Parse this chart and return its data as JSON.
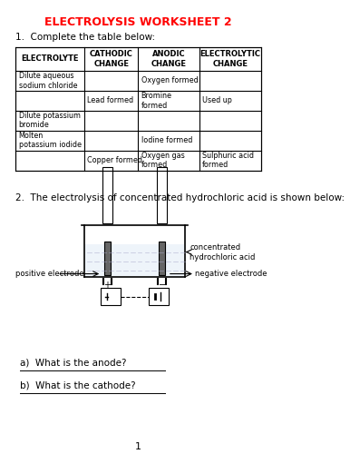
{
  "title": "ELECTROLYSIS WORKSHEET 2",
  "title_color": "#FF0000",
  "bg_color": "#FFFFFF",
  "q1_text": "1.  Complete the table below:",
  "q2_text": "2.  The electrolysis of concentrated hydrochloric acid is shown below:",
  "table_headers": [
    "ELECTROLYTE",
    "CATHODIC\nCHANGE",
    "ANODIC\nCHANGE",
    "ELECTROLYTIC\nCHANGE"
  ],
  "table_rows": [
    [
      "Dilute aqueous\nsodium chloride",
      "",
      "Oxygen formed",
      ""
    ],
    [
      "",
      "Lead formed",
      "Bromine\nformed",
      "Used up"
    ],
    [
      "Dilute potassium\nbromide",
      "",
      "",
      ""
    ],
    [
      "Molten\npotassium iodide",
      "",
      "Iodine formed",
      ""
    ],
    [
      "",
      "Copper formed",
      "Oxygen gas\nformed",
      "Sulphuric acid\nformed"
    ]
  ],
  "qa_text": "a)  What is the anode?",
  "qb_text": "b)  What is the cathode?",
  "page_num": "1",
  "label_positive": "positive electrode",
  "label_negative": "negative electrode",
  "label_acid": "concentrated\nhydrochloric acid"
}
